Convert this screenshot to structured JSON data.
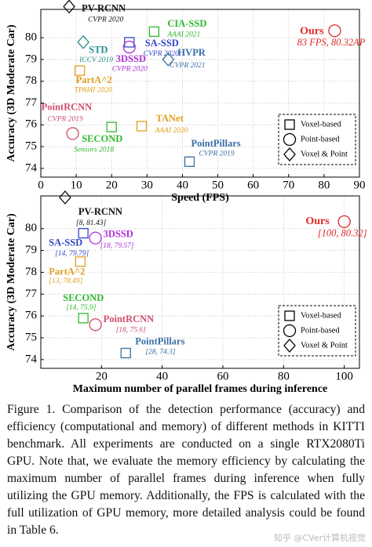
{
  "chart_data": [
    {
      "type": "scatter",
      "xlabel": "Speed (FPS)",
      "ylabel": "Accuracy (3D Moderate Car)",
      "xlim": [
        0,
        90
      ],
      "ylim": [
        73.6,
        81.3
      ],
      "xticks": [
        0,
        10,
        20,
        30,
        40,
        50,
        60,
        70,
        80,
        90
      ],
      "yticks": [
        74,
        75,
        76,
        77,
        78,
        79,
        80
      ],
      "grid": true,
      "legend_loc": "lower right",
      "legend": [
        {
          "label": "Voxel-based",
          "marker": "square"
        },
        {
          "label": "Point-based",
          "marker": "circle"
        },
        {
          "label": "Voxel & Point",
          "marker": "diamond"
        }
      ],
      "series": [
        {
          "name": "PV-RCNN",
          "venue": "CVPR 2020",
          "marker": "diamond",
          "color": "#111111",
          "x": [
            8
          ],
          "values": [
            81.43
          ]
        },
        {
          "name": "CIA-SSD",
          "venue": "AAAI 2021",
          "marker": "square",
          "color": "#2fb82f",
          "x": [
            32
          ],
          "values": [
            80.28
          ]
        },
        {
          "name": "SA-SSD",
          "venue": "CVPR 2020",
          "marker": "square",
          "color": "#3346c8",
          "x": [
            25
          ],
          "values": [
            79.79
          ]
        },
        {
          "name": "3DSSD",
          "venue": "CVPR 2020",
          "marker": "circle",
          "color": "#b02fd8",
          "x": [
            25
          ],
          "values": [
            79.57
          ]
        },
        {
          "name": "STD",
          "venue": "ICCV 2019",
          "marker": "diamond",
          "color": "#2a8c8c",
          "x": [
            12
          ],
          "values": [
            79.8
          ]
        },
        {
          "name": "PartA^2",
          "venue": "TPAMI 2020",
          "marker": "square",
          "color": "#e0a020",
          "x": [
            11
          ],
          "values": [
            78.49
          ]
        },
        {
          "name": "HVPR",
          "venue": "CVPR 2021",
          "marker": "diamond",
          "color": "#3a6ea5",
          "x": [
            36
          ],
          "values": [
            79
          ]
        },
        {
          "name": "PointRCNN",
          "venue": "CVPR 2019",
          "marker": "circle",
          "color": "#d0506e",
          "x": [
            9
          ],
          "values": [
            75.6
          ]
        },
        {
          "name": "SECOND",
          "venue": "Sensors 2018",
          "marker": "square",
          "color": "#2fb82f",
          "x": [
            20
          ],
          "values": [
            75.9
          ]
        },
        {
          "name": "TANet",
          "venue": "AAAI 2020",
          "marker": "square",
          "color": "#e0a020",
          "x": [
            28.5
          ],
          "values": [
            75.94
          ]
        },
        {
          "name": "PointPillars",
          "venue": "CVPR 2019",
          "marker": "square",
          "color": "#3a6ea5",
          "x": [
            42
          ],
          "values": [
            74.31
          ]
        },
        {
          "name": "Ours",
          "venue": "83 FPS, 80.32AP",
          "marker": "circle",
          "color": "#e02828",
          "x": [
            83
          ],
          "values": [
            80.32
          ]
        }
      ]
    },
    {
      "type": "scatter",
      "xlabel": "Maximum number of parallel frames during inference",
      "ylabel": "Accuracy (3D Moderate Car)",
      "xlim": [
        0,
        105
      ],
      "ylim": [
        73.6,
        81.5
      ],
      "xticks": [
        20,
        40,
        60,
        80,
        100
      ],
      "yticks": [
        74,
        75,
        76,
        77,
        78,
        79,
        80
      ],
      "grid": true,
      "legend_loc": "lower right",
      "legend": [
        {
          "label": "Voxel-based",
          "marker": "square"
        },
        {
          "label": "Point-based",
          "marker": "circle"
        },
        {
          "label": "Voxel & Point",
          "marker": "diamond"
        }
      ],
      "series": [
        {
          "name": "PV-RCNN",
          "marker": "diamond",
          "color": "#111111",
          "x": [
            8
          ],
          "values": [
            81.43
          ],
          "value_labels": [
            "[8, 81.43]"
          ]
        },
        {
          "name": "SA-SSD",
          "marker": "square",
          "color": "#3346c8",
          "x": [
            14
          ],
          "values": [
            79.79
          ],
          "value_labels": [
            "[14, 79.79]"
          ]
        },
        {
          "name": "3DSSD",
          "marker": "circle",
          "color": "#b02fd8",
          "x": [
            18
          ],
          "values": [
            79.57
          ],
          "value_labels": [
            "[18, 79.57]"
          ]
        },
        {
          "name": "PartA^2",
          "marker": "square",
          "color": "#e0a020",
          "x": [
            13
          ],
          "values": [
            78.49
          ],
          "value_labels": [
            "[13, 78.49]"
          ]
        },
        {
          "name": "SECOND",
          "marker": "square",
          "color": "#2fb82f",
          "x": [
            14
          ],
          "values": [
            75.9
          ],
          "value_labels": [
            "[14, 75.9]"
          ]
        },
        {
          "name": "PointRCNN",
          "marker": "circle",
          "color": "#d0506e",
          "x": [
            18
          ],
          "values": [
            75.6
          ],
          "value_labels": [
            "[18, 75.6]"
          ]
        },
        {
          "name": "PointPillars",
          "marker": "square",
          "color": "#3a6ea5",
          "x": [
            28
          ],
          "values": [
            74.3
          ],
          "value_labels": [
            "[28, 74.3]"
          ]
        },
        {
          "name": "Ours",
          "marker": "circle",
          "color": "#e02828",
          "x": [
            100
          ],
          "values": [
            80.32
          ],
          "value_labels": [
            "[100, 80.32]"
          ]
        }
      ]
    }
  ],
  "caption": "Figure 1.  Comparison of the detection performance (accuracy) and efficiency (computational and memory) of different methods in KITTI benchmark.  All experiments are conducted on a single RTX2080Ti GPU. Note that, we evaluate the memory efficiency by calculating the maximum number of parallel frames during inference when fully utilizing the GPU memory.  Additionally, the FPS is calculated with the full utilization of GPU memory, more detailed analysis could be found in Table 6.",
  "watermark": "知乎 @CVer计算机视觉"
}
